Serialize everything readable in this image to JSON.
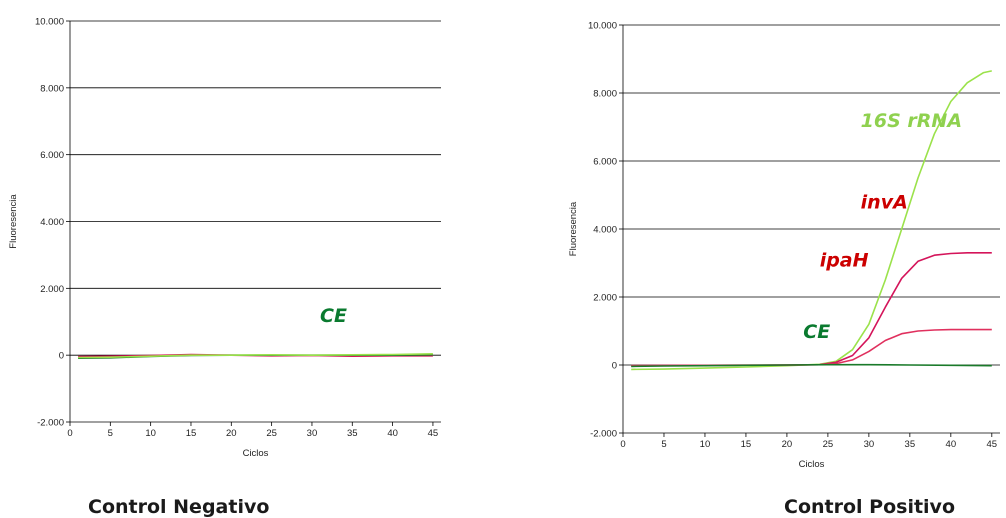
{
  "chart_data": [
    {
      "type": "line",
      "caption": "Control Negativo",
      "xlabel": "Ciclos",
      "ylabel": "Fluoresencia",
      "xlim": [
        0,
        46
      ],
      "ylim": [
        -2000,
        10000
      ],
      "x_ticks": [
        0,
        5,
        10,
        15,
        20,
        25,
        30,
        35,
        40,
        45
      ],
      "y_ticks": [
        -2000,
        0,
        2000,
        4000,
        6000,
        8000,
        10000
      ],
      "y_tick_labels": [
        "-2.000",
        "0",
        "2.000",
        "4.000",
        "6.000",
        "8.000",
        "10.000"
      ],
      "grid": "horizontal",
      "annotations": [
        {
          "text": "CE",
          "color": "#0a7a2f",
          "x": 31,
          "y": 1000
        }
      ],
      "series": [
        {
          "color": "#d4145a",
          "x": [
            1,
            5,
            10,
            15,
            20,
            25,
            30,
            35,
            40,
            45
          ],
          "y": [
            -40,
            -30,
            -10,
            20,
            0,
            -20,
            -10,
            -30,
            -20,
            -20
          ]
        },
        {
          "color": "#1a7a2a",
          "x": [
            1,
            5,
            10,
            15,
            20,
            25,
            30,
            35,
            40,
            45
          ],
          "y": [
            -90,
            -80,
            -40,
            -10,
            0,
            0,
            0,
            0,
            0,
            10
          ]
        },
        {
          "color": "#9be24b",
          "x": [
            1,
            5,
            10,
            15,
            20,
            25,
            30,
            35,
            40,
            45
          ],
          "y": [
            -70,
            -60,
            -30,
            0,
            0,
            10,
            0,
            10,
            20,
            40
          ]
        }
      ]
    },
    {
      "type": "line",
      "caption": "Control Positivo",
      "xlabel": "Ciclos",
      "ylabel": "Fluoresencia",
      "xlim": [
        0,
        46
      ],
      "ylim": [
        -2000,
        10000
      ],
      "x_ticks": [
        0,
        5,
        10,
        15,
        20,
        25,
        30,
        35,
        40,
        45
      ],
      "y_ticks": [
        -2000,
        0,
        2000,
        4000,
        6000,
        8000,
        10000
      ],
      "y_tick_labels": [
        "-2.000",
        "0",
        "2.000",
        "4.000",
        "6.000",
        "8.000",
        "10.000"
      ],
      "grid": "horizontal",
      "annotations": [
        {
          "text": "16S rRNA",
          "color": "#8fd14f",
          "x": 29,
          "y": 7000
        },
        {
          "text": "invA",
          "color": "#cc0000",
          "x": 29,
          "y": 4600
        },
        {
          "text": "ipaH",
          "color": "#cc0000",
          "x": 24,
          "y": 2900
        },
        {
          "text": "CE",
          "color": "#0a7a2f",
          "x": 22,
          "y": 800
        }
      ],
      "series": [
        {
          "color": "#9be24b",
          "x": [
            1,
            5,
            10,
            15,
            20,
            24,
            26,
            28,
            30,
            32,
            34,
            36,
            38,
            40,
            42,
            44,
            45
          ],
          "y": [
            -130,
            -120,
            -90,
            -60,
            -20,
            20,
            110,
            450,
            1200,
            2500,
            4000,
            5500,
            6800,
            7750,
            8300,
            8600,
            8650
          ]
        },
        {
          "color": "#d4145a",
          "x": [
            1,
            5,
            10,
            15,
            20,
            24,
            26,
            28,
            30,
            32,
            34,
            36,
            38,
            40,
            42,
            45
          ],
          "y": [
            -20,
            -15,
            -10,
            -5,
            0,
            10,
            80,
            280,
            800,
            1700,
            2550,
            3050,
            3230,
            3280,
            3300,
            3300
          ]
        },
        {
          "color": "#e0305e",
          "x": [
            1,
            5,
            10,
            15,
            20,
            24,
            26,
            28,
            30,
            32,
            34,
            36,
            38,
            40,
            42,
            45
          ],
          "y": [
            -20,
            -15,
            -10,
            -5,
            0,
            10,
            40,
            150,
            400,
            720,
            920,
            1000,
            1030,
            1040,
            1040,
            1040
          ]
        },
        {
          "color": "#1a7a2a",
          "x": [
            1,
            5,
            10,
            15,
            20,
            25,
            30,
            35,
            40,
            45
          ],
          "y": [
            -40,
            -30,
            -20,
            -10,
            0,
            10,
            10,
            0,
            -10,
            -20
          ]
        }
      ]
    }
  ]
}
